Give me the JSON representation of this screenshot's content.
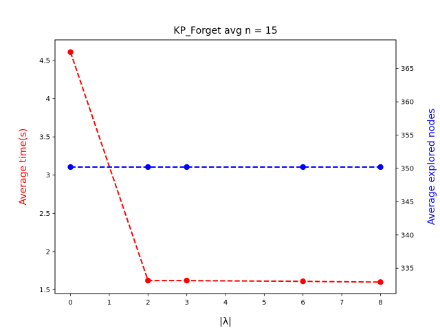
{
  "chart_data": {
    "type": "line",
    "title": "KP_Forget avg n = 15",
    "xlabel": "|λ|",
    "ylabel_left": "Average time(s)",
    "ylabel_right": "Average explored nodes",
    "x": [
      0,
      2,
      3,
      6,
      8
    ],
    "xlim": [
      -0.4,
      8.4
    ],
    "ylim_left": [
      1.45,
      4.77
    ],
    "ylim_right": [
      331.2,
      369.3
    ],
    "xticks": [
      0,
      1,
      2,
      3,
      4,
      5,
      6,
      7,
      8
    ],
    "yticks_left": [
      1.5,
      2.0,
      2.5,
      3.0,
      3.5,
      4.0,
      4.5
    ],
    "yticks_right": [
      335,
      340,
      345,
      350,
      355,
      360,
      365
    ],
    "grid": false,
    "series": [
      {
        "axis": "left",
        "color": "#ff0000",
        "line_style": "dashed",
        "marker": "circle",
        "values": [
          4.61,
          1.62,
          1.62,
          1.61,
          1.6
        ]
      },
      {
        "axis": "right",
        "color": "#0000ff",
        "line_style": "dashed",
        "marker": "circle",
        "values": [
          350.2,
          350.2,
          350.2,
          350.2,
          350.2
        ]
      }
    ],
    "colors": {
      "left_axis_label": "#ff0000",
      "right_axis_label": "#0000ff"
    }
  }
}
